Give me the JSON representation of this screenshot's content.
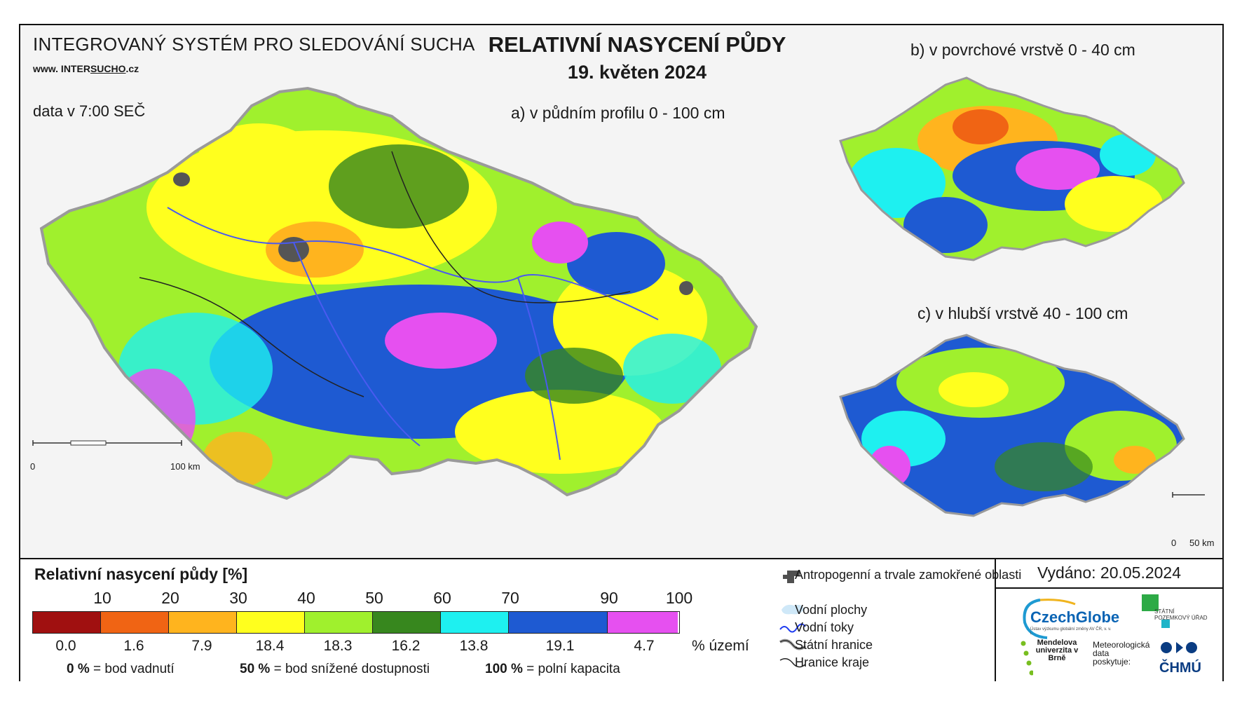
{
  "header": {
    "system": "INTEGROVANÝ SYSTÉM PRO SLEDOVÁNÍ SUCHA",
    "url_prefix": "www. INTER",
    "url_mid": "SUCHO",
    "url_suffix": ".cz",
    "data_time": "data v 7:00 SEČ"
  },
  "title": {
    "main": "RELATIVNÍ NASYCENÍ PŮDY",
    "date": "19. květen 2024"
  },
  "maps": {
    "a_label": "a) v půdním profilu 0 - 100 cm",
    "b_label": "b) v povrchové vrstvě 0 - 40 cm",
    "c_label": "c) v hlubší vrstvě 40 - 100 cm",
    "scale_a": {
      "zero": "0",
      "end": "100 km"
    },
    "scale_c": {
      "zero": "0",
      "end": "50 km"
    }
  },
  "legend": {
    "title": "Relativní nasycení půdy [%]",
    "ticks": [
      "10",
      "20",
      "30",
      "40",
      "50",
      "60",
      "70",
      "90",
      "100"
    ],
    "classes": [
      {
        "color": "#a01010",
        "share": "0.0"
      },
      {
        "color": "#f06414",
        "share": "1.6"
      },
      {
        "color": "#ffb41e",
        "share": "7.9"
      },
      {
        "color": "#ffff1e",
        "share": "18.4"
      },
      {
        "color": "#a0f02d",
        "share": "18.3"
      },
      {
        "color": "#37871e",
        "share": "16.2"
      },
      {
        "color": "#1ef0f0",
        "share": "13.8"
      },
      {
        "color": "#1e5ad2",
        "share": "19.1"
      },
      {
        "color": "#e650f0",
        "share": "4.7"
      }
    ],
    "share_unit": "% území",
    "definitions": [
      {
        "value": "0 %",
        "text": "= bod vadnutí"
      },
      {
        "value": "50 %",
        "text": "= bod snížené dostupnosti"
      },
      {
        "value": "100 %",
        "text": "= polní kapacita"
      }
    ]
  },
  "features": {
    "anthropogenic": "Antropogenní a trvale zamokřené oblasti",
    "water_bodies": "Vodní plochy",
    "rivers": "Vodní toky",
    "state_border": "Státní hranice",
    "region_border": "Hranice kraje"
  },
  "footer": {
    "issued": "Vydáno: 20.05.2024",
    "czechglobe": "CzechGlobe",
    "czechglobe_sub": "Ústav výzkumu globální změny AV ČR, v. v. i.",
    "spu": "STÁTNÍ POZEMKOVÝ ÚŘAD",
    "mendel": "Mendelova univerzita v Brně",
    "meteo": "Meteorologická data poskytuje:",
    "chmu": "ČHMÚ"
  }
}
